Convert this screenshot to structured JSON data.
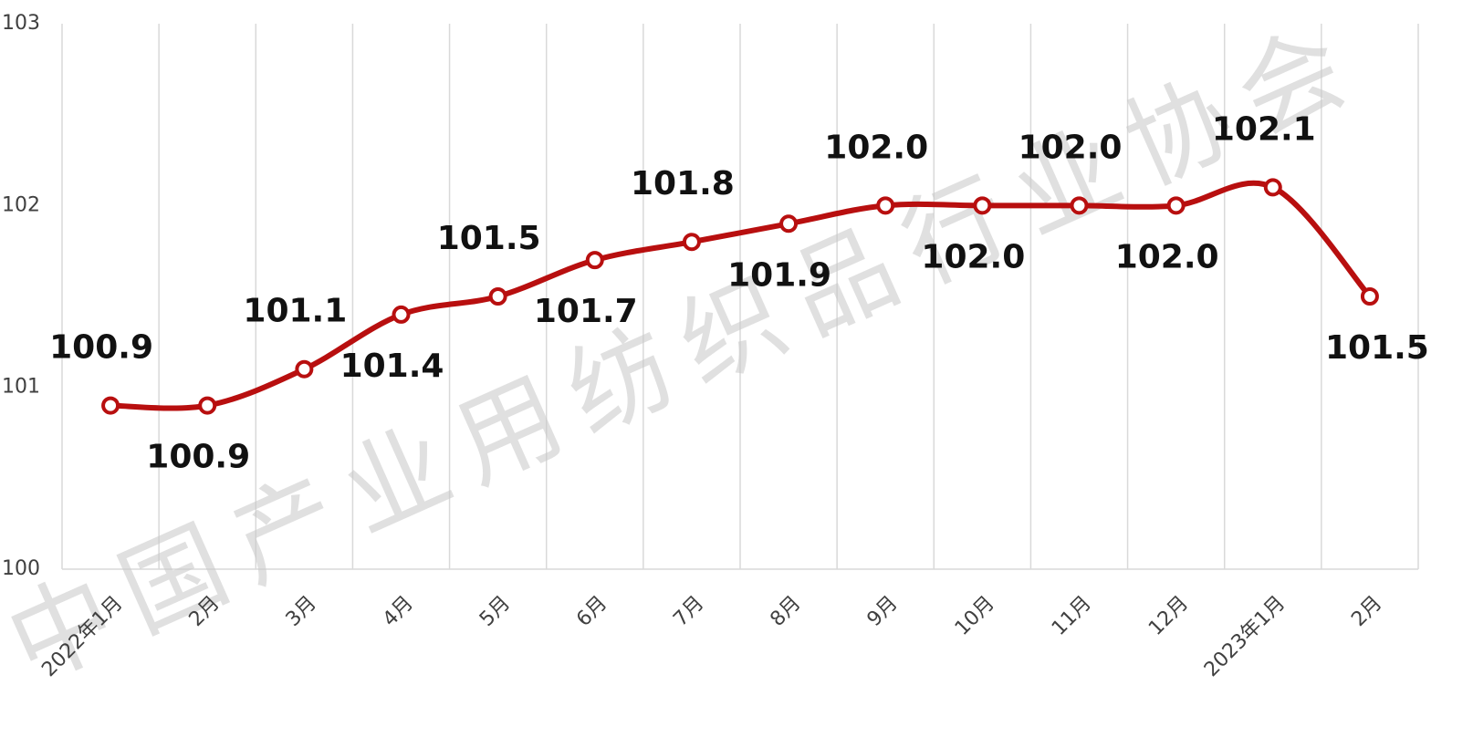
{
  "chart_data": {
    "type": "line",
    "watermark": "中国产业用纺织品行业协会",
    "categories": [
      "2022年1月",
      "2月",
      "3月",
      "4月",
      "5月",
      "6月",
      "7月",
      "8月",
      "9月",
      "10月",
      "11月",
      "12月",
      "2023年1月",
      "2月"
    ],
    "values": [
      100.9,
      100.9,
      101.1,
      101.4,
      101.5,
      101.7,
      101.8,
      101.9,
      102.0,
      102.0,
      102.0,
      102.0,
      102.1,
      101.5
    ],
    "value_labels": [
      "100.9",
      "100.9",
      "101.1",
      "101.4",
      "101.5",
      "101.7",
      "101.8",
      "101.9",
      "102.0",
      "102.0",
      "102.0",
      "102.0",
      "102.1",
      "101.5"
    ],
    "color": "#b80f0f",
    "ylim": [
      100,
      103
    ],
    "yticks": [
      100,
      101,
      102,
      103
    ],
    "grid": false
  }
}
